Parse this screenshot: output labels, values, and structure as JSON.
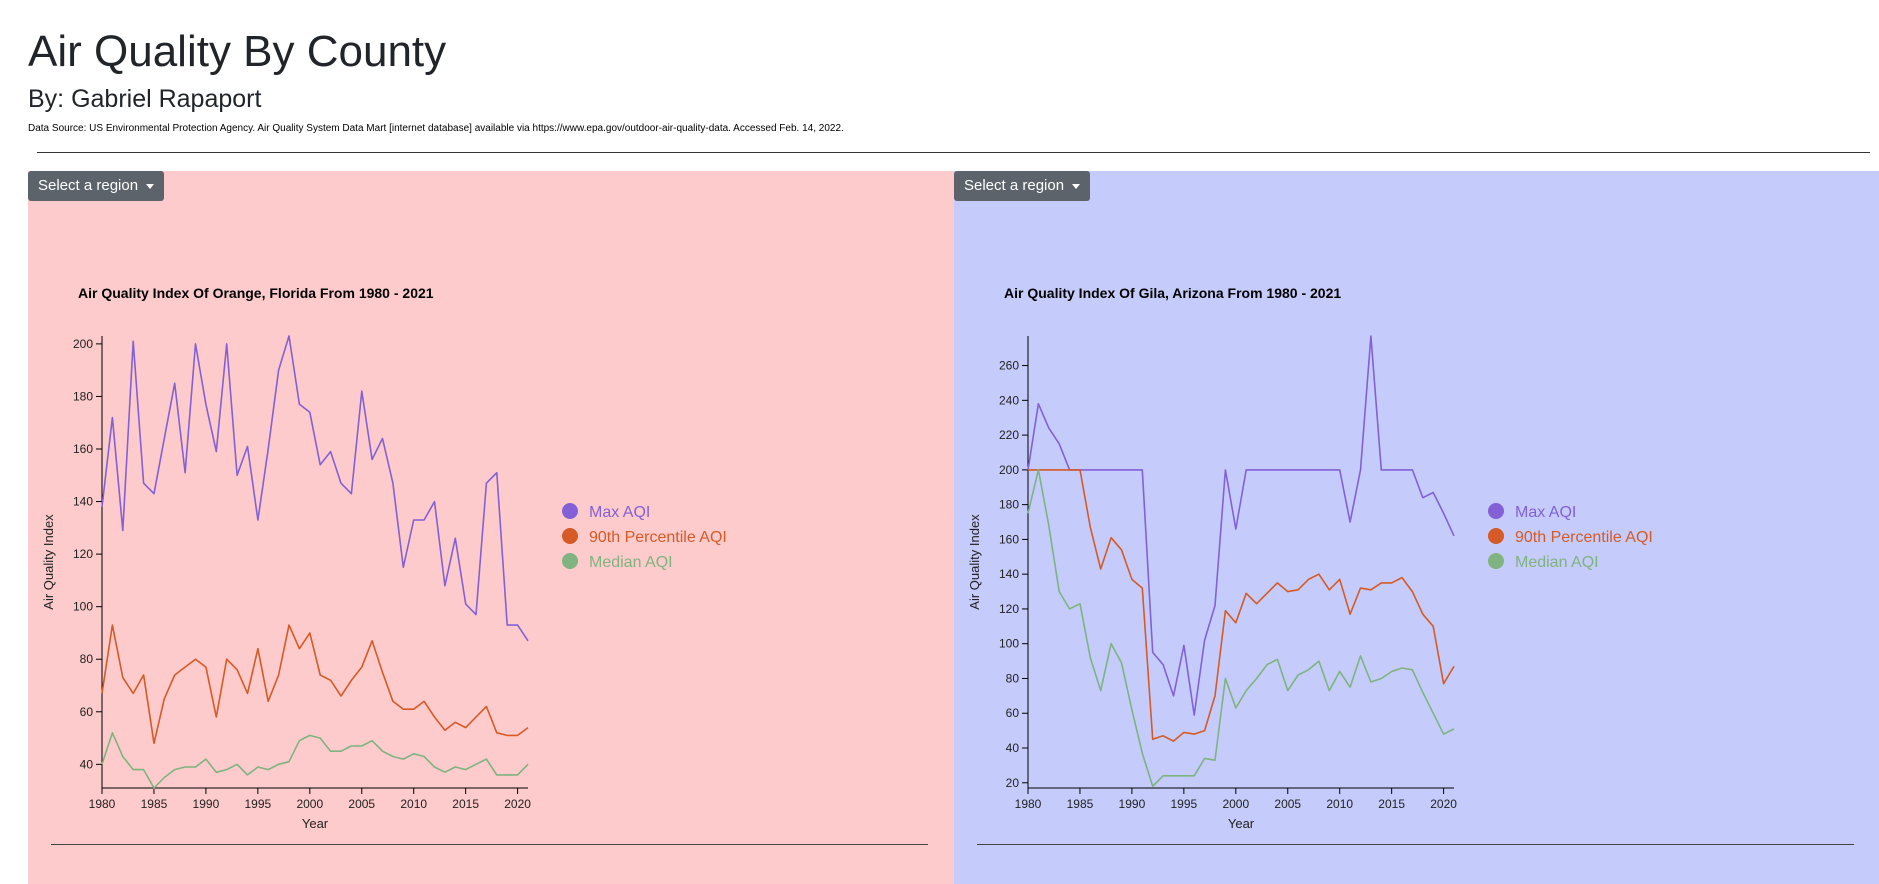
{
  "header": {
    "title": "Air Quality By County",
    "byline": "By: Gabriel Rapaport",
    "source": "Data Source: US Environmental Protection Agency. Air Quality System Data Mart [internet database] available via https://www.epa.gov/outdoor-air-quality-data. Accessed Feb. 14, 2022."
  },
  "colors": {
    "left_panel_bg": "#fecbcc",
    "right_panel_bg": "#c5ccfb",
    "max_aqi": "#8360d6",
    "p90_aqi": "#d55a26",
    "median_aqi": "#7fb37f",
    "button_bg": "#5c636a"
  },
  "left": {
    "dropdown_label": "Select a region"
  },
  "right": {
    "dropdown_label": "Select a region"
  },
  "chart_data": [
    {
      "type": "line",
      "title": "Air Quality Index Of Orange, Florida From 1980 - 2021",
      "xlabel": "Year",
      "ylabel": "Air Quality Index",
      "xlim": [
        1980,
        2021
      ],
      "ylim": [
        31,
        203
      ],
      "xticks": [
        1980,
        1985,
        1990,
        1995,
        2000,
        2005,
        2010,
        2015,
        2020
      ],
      "yticks": [
        40,
        60,
        80,
        100,
        120,
        140,
        160,
        180,
        200
      ],
      "legend": "right",
      "x": [
        1980,
        1981,
        1982,
        1983,
        1984,
        1985,
        1986,
        1987,
        1988,
        1989,
        1990,
        1991,
        1992,
        1993,
        1994,
        1995,
        1996,
        1997,
        1998,
        1999,
        2000,
        2001,
        2002,
        2003,
        2004,
        2005,
        2006,
        2007,
        2008,
        2009,
        2010,
        2011,
        2012,
        2013,
        2014,
        2015,
        2016,
        2017,
        2018,
        2019,
        2020,
        2021
      ],
      "series": [
        {
          "name": "Max AQI",
          "color": "#8360d6",
          "values": [
            138,
            172,
            129,
            201,
            147,
            143,
            164,
            185,
            151,
            200,
            177,
            159,
            200,
            150,
            161,
            133,
            160,
            190,
            203,
            177,
            174,
            154,
            159,
            147,
            143,
            182,
            156,
            164,
            147,
            115,
            133,
            133,
            140,
            108,
            126,
            101,
            97,
            147,
            151,
            93,
            93,
            87
          ]
        },
        {
          "name": "90th Percentile AQI",
          "color": "#d55a26",
          "values": [
            67,
            93,
            73,
            67,
            74,
            48,
            65,
            74,
            77,
            80,
            77,
            58,
            80,
            76,
            67,
            84,
            64,
            74,
            93,
            84,
            90,
            74,
            72,
            66,
            72,
            77,
            87,
            75,
            64,
            61,
            61,
            64,
            58,
            53,
            56,
            54,
            58,
            62,
            52,
            51,
            51,
            54
          ]
        },
        {
          "name": "Median AQI",
          "color": "#7fb37f",
          "values": [
            40,
            52,
            43,
            38,
            38,
            31,
            35,
            38,
            39,
            39,
            42,
            37,
            38,
            40,
            36,
            39,
            38,
            40,
            41,
            49,
            51,
            50,
            45,
            45,
            47,
            47,
            49,
            45,
            43,
            42,
            44,
            43,
            39,
            37,
            39,
            38,
            40,
            42,
            36,
            36,
            36,
            40
          ]
        }
      ]
    },
    {
      "type": "line",
      "title": "Air Quality Index Of Gila, Arizona From 1980 - 2021",
      "xlabel": "Year",
      "ylabel": "Air Quality Index",
      "xlim": [
        1980,
        2021
      ],
      "ylim": [
        17,
        277
      ],
      "xticks": [
        1980,
        1985,
        1990,
        1995,
        2000,
        2005,
        2010,
        2015,
        2020
      ],
      "yticks": [
        20,
        40,
        60,
        80,
        100,
        120,
        140,
        160,
        180,
        200,
        220,
        240,
        260
      ],
      "legend": "right",
      "x": [
        1980,
        1981,
        1982,
        1983,
        1984,
        1985,
        1986,
        1987,
        1988,
        1989,
        1990,
        1991,
        1992,
        1993,
        1994,
        1995,
        1996,
        1997,
        1998,
        1999,
        2000,
        2001,
        2002,
        2003,
        2004,
        2005,
        2006,
        2007,
        2008,
        2009,
        2010,
        2011,
        2012,
        2013,
        2014,
        2015,
        2016,
        2017,
        2018,
        2019,
        2020,
        2021
      ],
      "series": [
        {
          "name": "Max AQI",
          "color": "#8360d6",
          "values": [
            200,
            238,
            224,
            215,
            200,
            200,
            200,
            200,
            200,
            200,
            200,
            200,
            95,
            88,
            70,
            99,
            59,
            102,
            122,
            200,
            166,
            200,
            200,
            200,
            200,
            200,
            200,
            200,
            200,
            200,
            200,
            170,
            200,
            277,
            200,
            200,
            200,
            200,
            184,
            187,
            175,
            162
          ]
        },
        {
          "name": "90th Percentile AQI",
          "color": "#d55a26",
          "values": [
            200,
            200,
            200,
            200,
            200,
            200,
            167,
            143,
            161,
            154,
            137,
            132,
            45,
            47,
            44,
            49,
            48,
            50,
            70,
            119,
            112,
            129,
            123,
            129,
            135,
            130,
            131,
            137,
            140,
            131,
            137,
            117,
            132,
            131,
            135,
            135,
            138,
            130,
            117,
            110,
            77,
            87
          ]
        },
        {
          "name": "Median AQI",
          "color": "#7fb37f",
          "values": [
            175,
            200,
            168,
            130,
            120,
            123,
            92,
            73,
            100,
            89,
            62,
            37,
            18,
            24,
            24,
            24,
            24,
            34,
            33,
            80,
            63,
            73,
            80,
            88,
            91,
            73,
            82,
            85,
            90,
            73,
            84,
            75,
            93,
            78,
            80,
            84,
            86,
            85,
            72,
            60,
            48,
            51
          ]
        }
      ]
    }
  ]
}
